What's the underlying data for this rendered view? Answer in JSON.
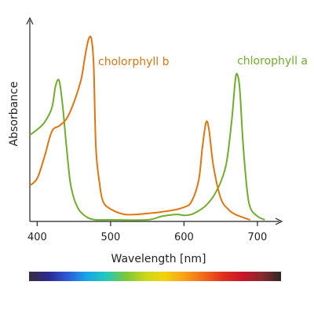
{
  "chart_data": {
    "type": "line",
    "title": "",
    "xlabel": "Wavelength [nm]",
    "ylabel": "Absorbance",
    "x_ticks": [
      400,
      500,
      600,
      700
    ],
    "xlim": [
      390,
      730
    ],
    "ylim": [
      0,
      1
    ],
    "grid": false,
    "legend": "none",
    "series": [
      {
        "name": "chlorophyll a",
        "color": "#6fae2a",
        "label_anchor": "end",
        "points": [
          [
            390,
            0.47
          ],
          [
            400,
            0.5
          ],
          [
            410,
            0.54
          ],
          [
            420,
            0.62
          ],
          [
            425,
            0.74
          ],
          [
            430,
            0.77
          ],
          [
            435,
            0.62
          ],
          [
            440,
            0.4
          ],
          [
            445,
            0.21
          ],
          [
            450,
            0.12
          ],
          [
            455,
            0.07
          ],
          [
            460,
            0.04
          ],
          [
            470,
            0.01
          ],
          [
            480,
            0.0
          ],
          [
            500,
            0.0
          ],
          [
            550,
            0.0
          ],
          [
            570,
            0.02
          ],
          [
            590,
            0.03
          ],
          [
            600,
            0.025
          ],
          [
            610,
            0.03
          ],
          [
            620,
            0.05
          ],
          [
            630,
            0.08
          ],
          [
            640,
            0.13
          ],
          [
            650,
            0.21
          ],
          [
            658,
            0.32
          ],
          [
            665,
            0.55
          ],
          [
            670,
            0.78
          ],
          [
            673,
            0.8
          ],
          [
            676,
            0.72
          ],
          [
            680,
            0.45
          ],
          [
            685,
            0.2
          ],
          [
            690,
            0.07
          ],
          [
            700,
            0.02
          ],
          [
            710,
            0.0
          ]
        ]
      },
      {
        "name": "cholorphyll b",
        "color": "#e2750f",
        "label_anchor": "start",
        "points": [
          [
            390,
            0.19
          ],
          [
            400,
            0.23
          ],
          [
            410,
            0.35
          ],
          [
            420,
            0.49
          ],
          [
            430,
            0.52
          ],
          [
            440,
            0.56
          ],
          [
            450,
            0.65
          ],
          [
            460,
            0.78
          ],
          [
            465,
            0.9
          ],
          [
            470,
            1.0
          ],
          [
            474,
            1.0
          ],
          [
            477,
            0.85
          ],
          [
            480,
            0.4
          ],
          [
            485,
            0.2
          ],
          [
            490,
            0.1
          ],
          [
            500,
            0.06
          ],
          [
            520,
            0.03
          ],
          [
            550,
            0.035
          ],
          [
            580,
            0.05
          ],
          [
            600,
            0.07
          ],
          [
            610,
            0.1
          ],
          [
            620,
            0.22
          ],
          [
            625,
            0.4
          ],
          [
            630,
            0.54
          ],
          [
            634,
            0.5
          ],
          [
            640,
            0.3
          ],
          [
            650,
            0.12
          ],
          [
            660,
            0.06
          ],
          [
            670,
            0.03
          ],
          [
            690,
            0.0
          ]
        ]
      }
    ]
  },
  "spectrum_bar": {
    "colors": [
      "#3a2d3a",
      "#2a2a90",
      "#2f5bd8",
      "#18a7e8",
      "#23c9b8",
      "#7cc63a",
      "#c9d81a",
      "#f2d20c",
      "#f7a118",
      "#f06a1c",
      "#e0301e",
      "#c8162a",
      "#8a2a2c",
      "#2e2727"
    ]
  }
}
